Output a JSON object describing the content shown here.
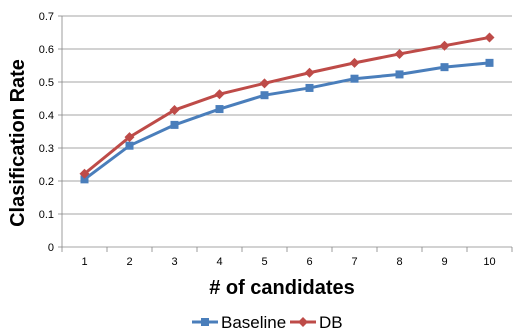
{
  "chart_data": {
    "type": "line",
    "title": "",
    "xlabel": "# of candidates",
    "ylabel": "Clasification Rate",
    "x": [
      1,
      2,
      3,
      4,
      5,
      6,
      7,
      8,
      9,
      10
    ],
    "x_tick_labels": [
      "1",
      "2",
      "3",
      "4",
      "5",
      "6",
      "7",
      "8",
      "9",
      "10"
    ],
    "y_tick_labels": [
      "0",
      "0.1",
      "0.2",
      "0.3",
      "0.4",
      "0.5",
      "0.6",
      "0.7"
    ],
    "y_ticks": [
      0,
      0.1,
      0.2,
      0.3,
      0.4,
      0.5,
      0.6,
      0.7
    ],
    "ylim": [
      0,
      0.7
    ],
    "grid": true,
    "legend_position": "bottom",
    "series": [
      {
        "name": "Baseline",
        "color": "#4a7ebb",
        "marker": "square",
        "values": [
          0.205,
          0.307,
          0.37,
          0.418,
          0.46,
          0.482,
          0.51,
          0.523,
          0.545,
          0.558
        ]
      },
      {
        "name": "DB",
        "color": "#be4b48",
        "marker": "diamond",
        "values": [
          0.222,
          0.333,
          0.415,
          0.463,
          0.496,
          0.528,
          0.558,
          0.585,
          0.61,
          0.635
        ]
      }
    ]
  }
}
